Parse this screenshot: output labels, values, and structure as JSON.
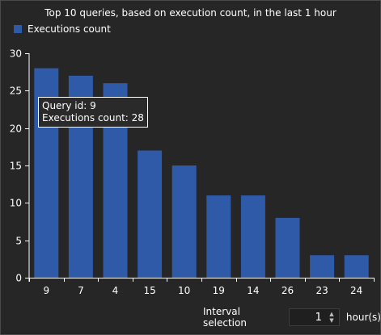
{
  "chart_data": {
    "type": "bar",
    "title": "Top 10 queries, based on execution count, in the last 1 hour",
    "legend": {
      "entries": [
        "Executions count"
      ],
      "placement": "top-left"
    },
    "categories": [
      "9",
      "7",
      "4",
      "15",
      "10",
      "19",
      "14",
      "26",
      "23",
      "24"
    ],
    "series": [
      {
        "name": "Executions count",
        "values": [
          28,
          27,
          26,
          17,
          15,
          11,
          11,
          8,
          3,
          3
        ]
      }
    ],
    "ylim": [
      0,
      30
    ],
    "yticks": [
      "0",
      "5",
      "10",
      "15",
      "20",
      "25",
      "30"
    ],
    "grid": false,
    "colors": {
      "bar": "#2e5aa8",
      "axis": "#ffffff",
      "background": "#262626"
    }
  },
  "tooltip": {
    "line1": "Query id: 9",
    "line2": "Executions count: 28"
  },
  "interval": {
    "label": "Interval selection",
    "value": "1",
    "unit": "hour(s)",
    "up_icon": "chevron-up-icon",
    "down_icon": "chevron-down-icon"
  }
}
